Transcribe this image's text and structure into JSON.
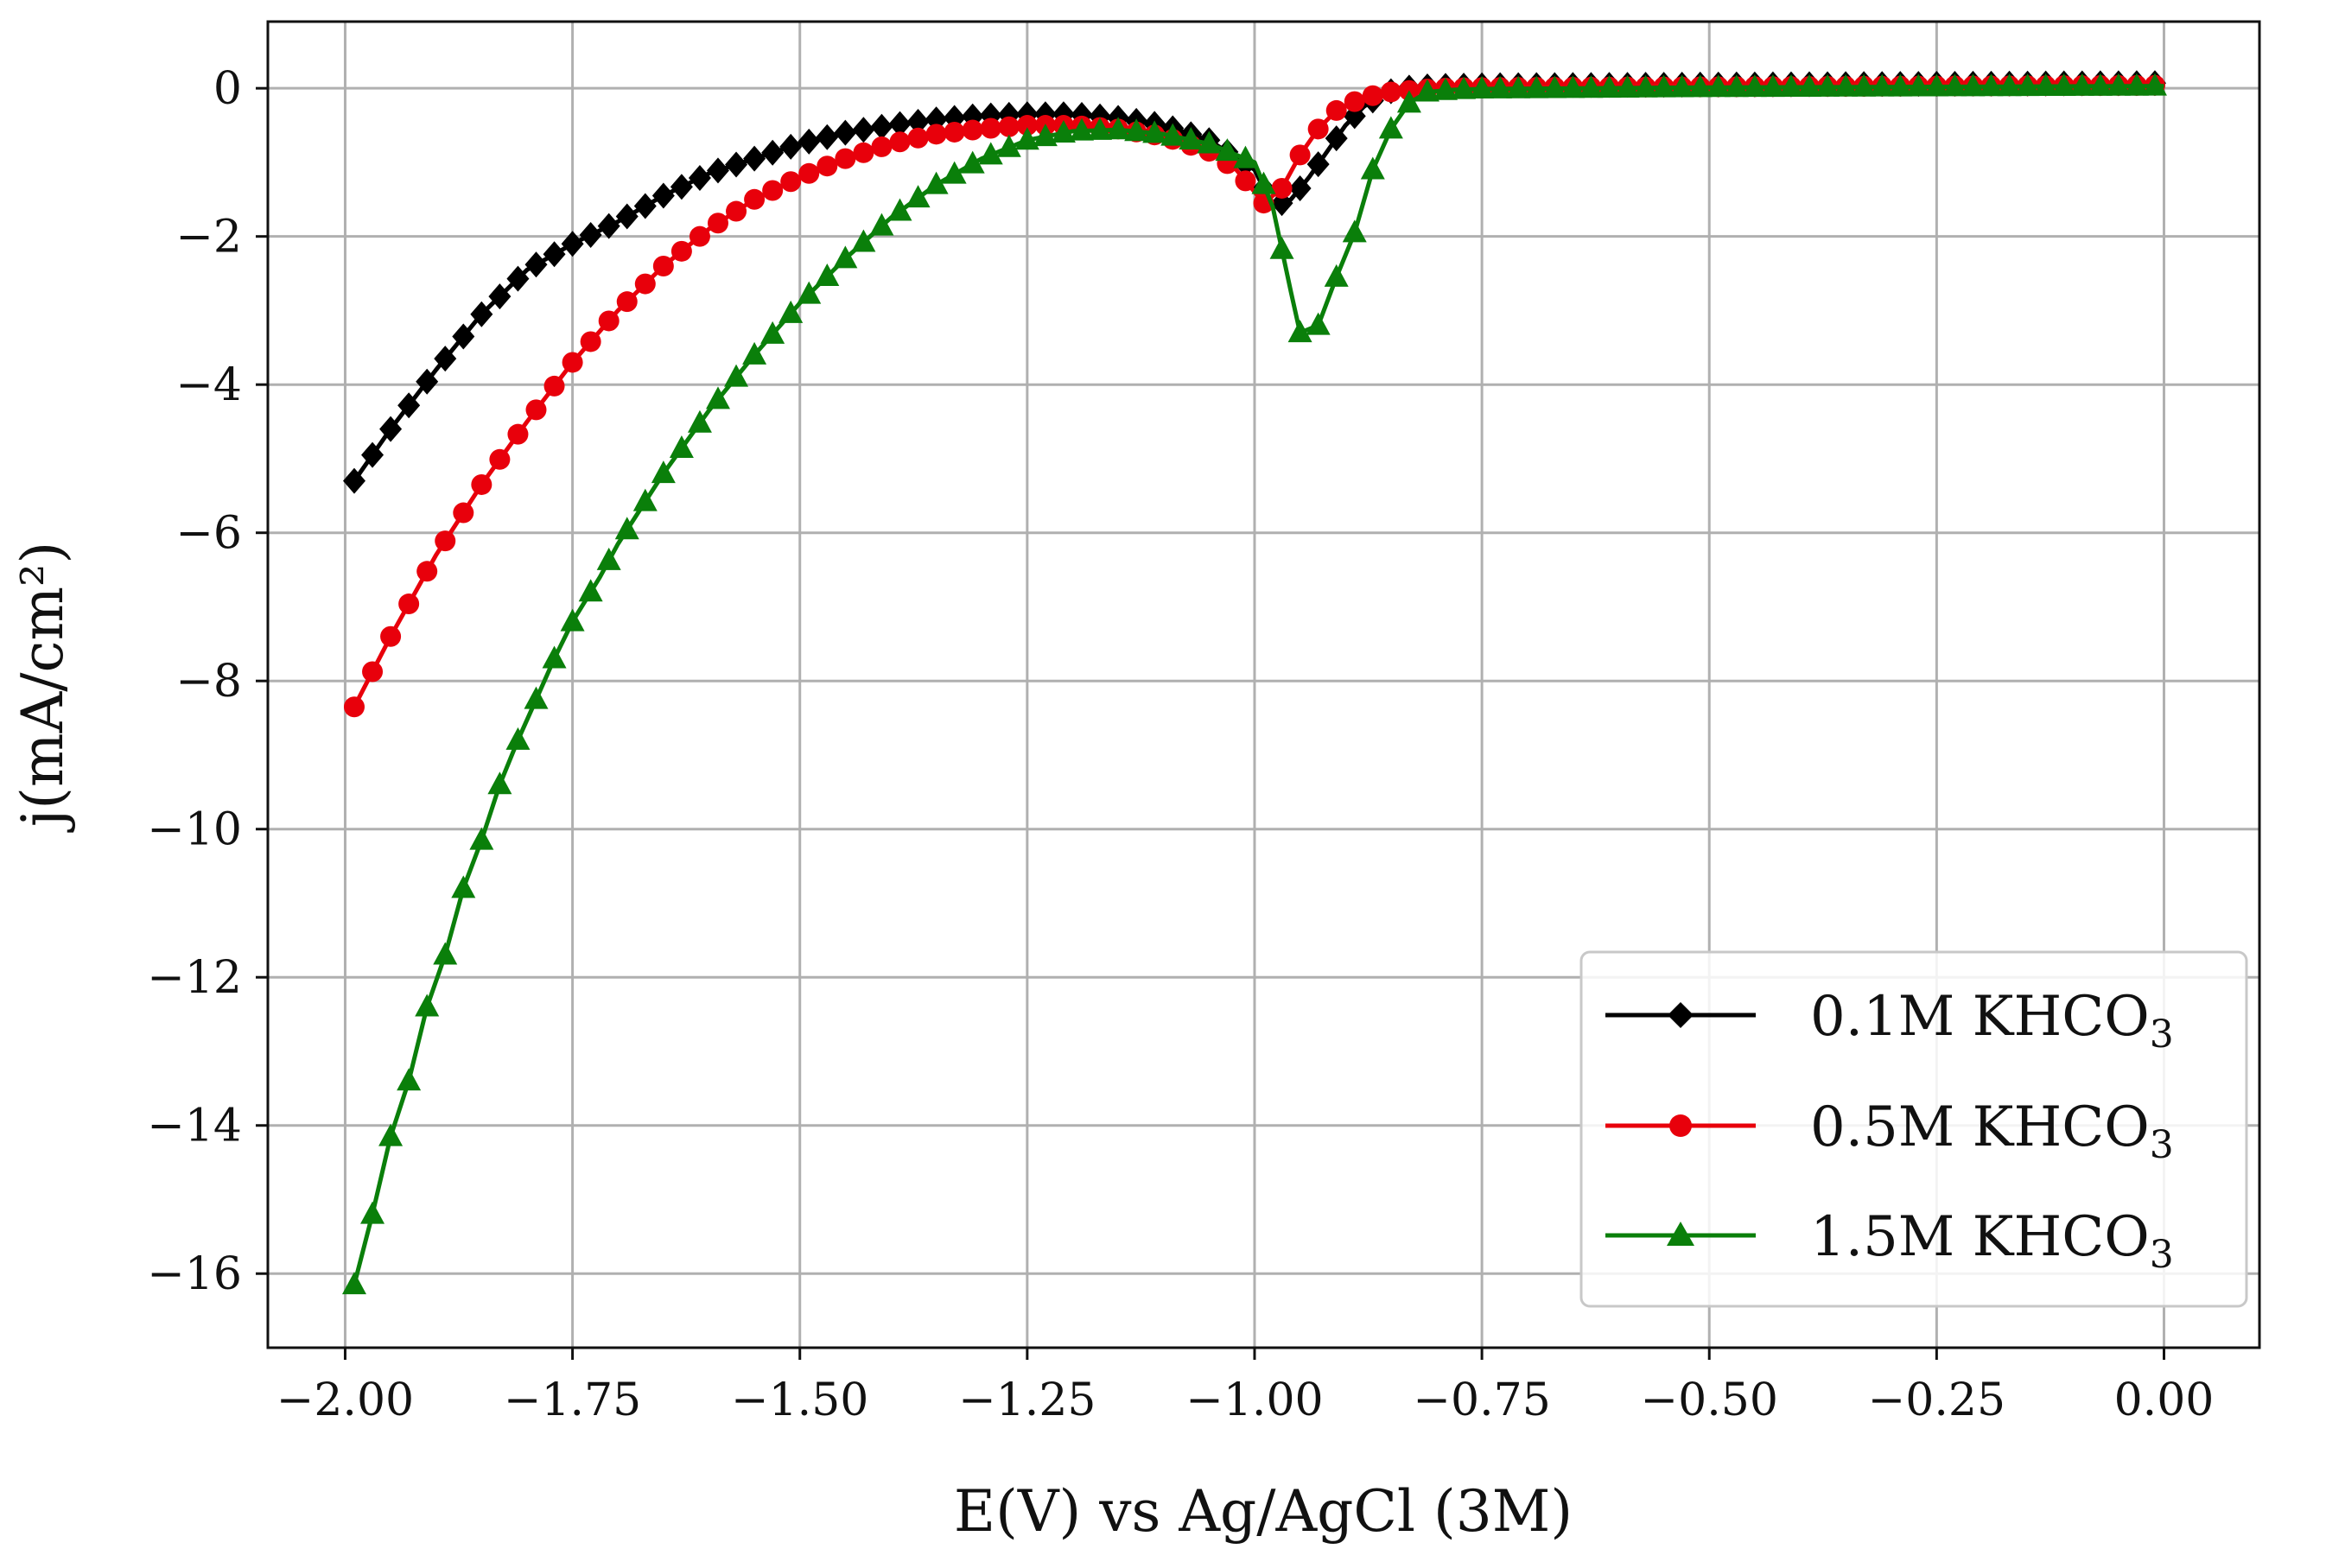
{
  "chart_data": {
    "type": "line",
    "title": "",
    "xlabel": "E(V) vs Ag/AgCl (3M)",
    "ylabel": "j(mA/cm²)",
    "xlim": [
      -2.085,
      0.105
    ],
    "ylim": [
      -17.0,
      0.9
    ],
    "x_ticks": [
      -2.0,
      -1.75,
      -1.5,
      -1.25,
      -1.0,
      -0.75,
      -0.5,
      -0.25,
      0.0
    ],
    "x_tick_labels": [
      "−2.00",
      "−1.75",
      "−1.50",
      "−1.25",
      "−1.00",
      "−0.75",
      "−0.50",
      "−0.25",
      "0.00"
    ],
    "y_ticks": [
      0,
      -2,
      -4,
      -6,
      -8,
      -10,
      -12,
      -14,
      -16
    ],
    "y_tick_labels": [
      "0",
      "−2",
      "−4",
      "−6",
      "−8",
      "−10",
      "−12",
      "−14",
      "−16"
    ],
    "grid": true,
    "legend_position": "bottom-right",
    "series": [
      {
        "name": "0.1M KHCO3",
        "legend_main": "0.1M KHCO",
        "legend_sub": "3",
        "color": "#000000",
        "marker": "diamond",
        "points": [
          [
            -1.99,
            -5.3
          ],
          [
            -1.95,
            -4.6
          ],
          [
            -1.9,
            -3.8
          ],
          [
            -1.85,
            -3.05
          ],
          [
            -1.8,
            -2.45
          ],
          [
            -1.75,
            -2.1
          ],
          [
            -1.7,
            -1.8
          ],
          [
            -1.65,
            -1.45
          ],
          [
            -1.6,
            -1.15
          ],
          [
            -1.55,
            -0.95
          ],
          [
            -1.5,
            -0.75
          ],
          [
            -1.45,
            -0.6
          ],
          [
            -1.4,
            -0.5
          ],
          [
            -1.35,
            -0.42
          ],
          [
            -1.3,
            -0.37
          ],
          [
            -1.25,
            -0.35
          ],
          [
            -1.2,
            -0.35
          ],
          [
            -1.15,
            -0.4
          ],
          [
            -1.1,
            -0.5
          ],
          [
            -1.05,
            -0.7
          ],
          [
            -1.0,
            -1.1
          ],
          [
            -0.98,
            -1.6
          ],
          [
            -0.96,
            -1.5
          ],
          [
            -0.94,
            -1.2
          ],
          [
            -0.92,
            -0.85
          ],
          [
            -0.9,
            -0.5
          ],
          [
            -0.88,
            -0.25
          ],
          [
            -0.86,
            -0.08
          ],
          [
            -0.84,
            0.0
          ],
          [
            -0.82,
            0.02
          ],
          [
            -0.8,
            0.03
          ],
          [
            -0.75,
            0.04
          ],
          [
            -0.5,
            0.05
          ],
          [
            -0.25,
            0.06
          ],
          [
            0.0,
            0.07
          ]
        ]
      },
      {
        "name": "0.5M KHCO3",
        "legend_main": "0.5M KHCO",
        "legend_sub": "3",
        "color": "#e8000b",
        "marker": "circle",
        "points": [
          [
            -1.99,
            -8.35
          ],
          [
            -1.95,
            -7.4
          ],
          [
            -1.9,
            -6.3
          ],
          [
            -1.85,
            -5.35
          ],
          [
            -1.8,
            -4.5
          ],
          [
            -1.75,
            -3.7
          ],
          [
            -1.7,
            -3.0
          ],
          [
            -1.65,
            -2.4
          ],
          [
            -1.6,
            -1.9
          ],
          [
            -1.55,
            -1.5
          ],
          [
            -1.5,
            -1.2
          ],
          [
            -1.45,
            -0.95
          ],
          [
            -1.4,
            -0.75
          ],
          [
            -1.35,
            -0.62
          ],
          [
            -1.3,
            -0.55
          ],
          [
            -1.25,
            -0.5
          ],
          [
            -1.2,
            -0.5
          ],
          [
            -1.15,
            -0.55
          ],
          [
            -1.1,
            -0.65
          ],
          [
            -1.05,
            -0.85
          ],
          [
            -1.02,
            -1.1
          ],
          [
            -1.0,
            -1.4
          ],
          [
            -0.99,
            -1.55
          ],
          [
            -0.97,
            -1.35
          ],
          [
            -0.95,
            -0.9
          ],
          [
            -0.93,
            -0.55
          ],
          [
            -0.91,
            -0.3
          ],
          [
            -0.89,
            -0.18
          ],
          [
            -0.87,
            -0.1
          ],
          [
            -0.85,
            -0.05
          ],
          [
            -0.8,
            0.0
          ],
          [
            -0.75,
            0.01
          ],
          [
            -0.5,
            0.02
          ],
          [
            -0.25,
            0.03
          ],
          [
            0.0,
            0.04
          ]
        ]
      },
      {
        "name": "1.5M KHCO3",
        "legend_main": "1.5M KHCO",
        "legend_sub": "3",
        "color": "#0a7f0a",
        "marker": "triangle",
        "points": [
          [
            -1.99,
            -16.15
          ],
          [
            -1.97,
            -15.2
          ],
          [
            -1.95,
            -14.15
          ],
          [
            -1.93,
            -13.4
          ],
          [
            -1.91,
            -12.4
          ],
          [
            -1.89,
            -11.7
          ],
          [
            -1.87,
            -10.8
          ],
          [
            -1.85,
            -10.15
          ],
          [
            -1.83,
            -9.4
          ],
          [
            -1.81,
            -8.8
          ],
          [
            -1.79,
            -8.25
          ],
          [
            -1.77,
            -7.7
          ],
          [
            -1.75,
            -7.2
          ],
          [
            -1.72,
            -6.6
          ],
          [
            -1.7,
            -6.15
          ],
          [
            -1.65,
            -5.2
          ],
          [
            -1.6,
            -4.35
          ],
          [
            -1.55,
            -3.6
          ],
          [
            -1.5,
            -2.9
          ],
          [
            -1.45,
            -2.3
          ],
          [
            -1.4,
            -1.75
          ],
          [
            -1.35,
            -1.3
          ],
          [
            -1.3,
            -0.95
          ],
          [
            -1.25,
            -0.7
          ],
          [
            -1.2,
            -0.58
          ],
          [
            -1.15,
            -0.56
          ],
          [
            -1.1,
            -0.62
          ],
          [
            -1.05,
            -0.75
          ],
          [
            -1.0,
            -1.0
          ],
          [
            -0.98,
            -1.6
          ],
          [
            -0.96,
            -2.75
          ],
          [
            -0.95,
            -3.3
          ],
          [
            -0.93,
            -3.2
          ],
          [
            -0.91,
            -2.55
          ],
          [
            -0.89,
            -1.95
          ],
          [
            -0.87,
            -1.1
          ],
          [
            -0.85,
            -0.55
          ],
          [
            -0.83,
            -0.2
          ],
          [
            -0.81,
            -0.05
          ],
          [
            -0.78,
            -0.02
          ],
          [
            -0.75,
            -0.01
          ],
          [
            -0.5,
            0.01
          ],
          [
            -0.25,
            0.02
          ],
          [
            0.0,
            0.03
          ]
        ]
      }
    ]
  }
}
